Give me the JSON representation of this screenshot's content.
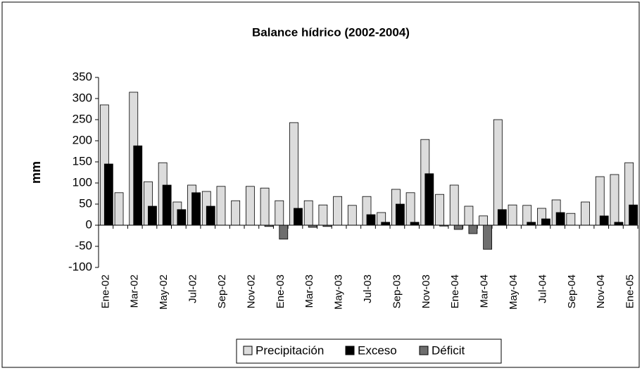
{
  "chart_data": {
    "type": "bar",
    "title": "Balance hídrico (2002-2004)",
    "y_label": "mm",
    "categories": [
      "Ene-02",
      null,
      "Mar-02",
      null,
      "May-02",
      null,
      "Jul-02",
      null,
      "Sep-02",
      null,
      "Nov-02",
      null,
      "Ene-03",
      null,
      "Mar-03",
      null,
      "May-03",
      null,
      "Jul-03",
      null,
      "Sep-03",
      null,
      "Nov-03",
      null,
      "Ene-04",
      null,
      "Mar-04",
      null,
      "May-04",
      null,
      "Jul-04",
      null,
      "Sep-04",
      null,
      "Nov-04",
      null,
      "Ene-05"
    ],
    "series": [
      {
        "name": "Precipitación",
        "color": "#dcdcdc",
        "values": [
          285,
          77,
          315,
          103,
          148,
          55,
          95,
          80,
          92,
          58,
          92,
          88,
          58,
          243,
          58,
          48,
          68,
          47,
          68,
          30,
          85,
          77,
          203,
          73,
          95,
          45,
          22,
          250,
          48,
          47,
          40,
          60,
          28,
          55,
          115,
          120,
          148
        ]
      },
      {
        "name": "Exceso",
        "color": "#000000",
        "values": [
          145,
          0,
          188,
          45,
          95,
          37,
          77,
          45,
          0,
          0,
          0,
          0,
          0,
          40,
          0,
          0,
          0,
          0,
          25,
          7,
          50,
          7,
          122,
          0,
          0,
          0,
          0,
          37,
          0,
          7,
          15,
          30,
          0,
          0,
          22,
          7,
          48
        ]
      },
      {
        "name": "Déficit",
        "color": "#6e6e6e",
        "values": [
          0,
          0,
          0,
          0,
          0,
          0,
          0,
          0,
          0,
          0,
          0,
          -3,
          -33,
          0,
          -5,
          -3,
          0,
          0,
          0,
          0,
          0,
          0,
          0,
          -2,
          -10,
          -20,
          -57,
          0,
          0,
          0,
          0,
          0,
          0,
          0,
          0,
          0,
          0
        ]
      }
    ],
    "ylim": [
      -100,
      350
    ],
    "yticks": [
      -100,
      -50,
      0,
      50,
      100,
      150,
      200,
      250,
      300,
      350
    ],
    "legend": "bottom"
  }
}
